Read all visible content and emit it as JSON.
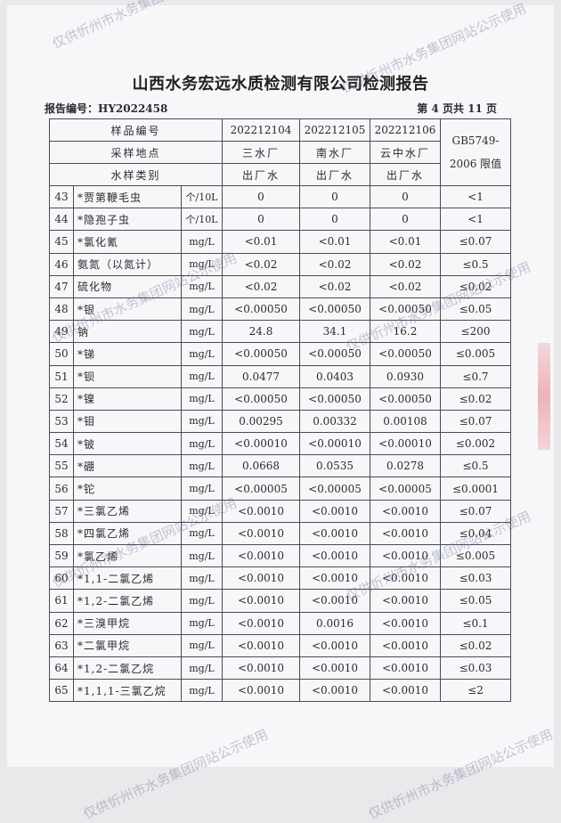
{
  "title": "山西水务宏远水质检测有限公司检测报告",
  "report_no": "报告编号：HY2022458",
  "page_no": "第 4 页共 11 页",
  "watermark": "仅供忻州市水务集团网站公示使用",
  "header": {
    "sample_no_label": "样品编号",
    "site_label": "采样地点",
    "type_label": "水样类别",
    "limit_label": "GB5749-2006 限值",
    "samples": [
      {
        "no": "202212104",
        "site": "三水厂",
        "type": "出厂水"
      },
      {
        "no": "202212105",
        "site": "南水厂",
        "type": "出厂水"
      },
      {
        "no": "202212106",
        "site": "云中水厂",
        "type": "出厂水"
      }
    ]
  },
  "rows": [
    [
      "43",
      "*贾第鞭毛虫",
      "个/10L",
      "0",
      "0",
      "0",
      "<1"
    ],
    [
      "44",
      "*隐孢子虫",
      "个/10L",
      "0",
      "0",
      "0",
      "<1"
    ],
    [
      "45",
      "*氯化氰",
      "mg/L",
      "<0.01",
      "<0.01",
      "<0.01",
      "≤0.07"
    ],
    [
      "46",
      "氨氮（以氮计）",
      "mg/L",
      "<0.02",
      "<0.02",
      "<0.02",
      "≤0.5"
    ],
    [
      "47",
      "硫化物",
      "mg/L",
      "<0.02",
      "<0.02",
      "<0.02",
      "≤0.02"
    ],
    [
      "48",
      "*银",
      "mg/L",
      "<0.00050",
      "<0.00050",
      "<0.00050",
      "≤0.05"
    ],
    [
      "49",
      "钠",
      "mg/L",
      "24.8",
      "34.1",
      "16.2",
      "≤200"
    ],
    [
      "50",
      "*锑",
      "mg/L",
      "<0.00050",
      "<0.00050",
      "<0.00050",
      "≤0.005"
    ],
    [
      "51",
      "*钡",
      "mg/L",
      "0.0477",
      "0.0403",
      "0.0930",
      "≤0.7"
    ],
    [
      "52",
      "*镍",
      "mg/L",
      "<0.00050",
      "<0.00050",
      "<0.00050",
      "≤0.02"
    ],
    [
      "53",
      "*钼",
      "mg/L",
      "0.00295",
      "0.00332",
      "0.00108",
      "≤0.07"
    ],
    [
      "54",
      "*铍",
      "mg/L",
      "<0.00010",
      "<0.00010",
      "<0.00010",
      "≤0.002"
    ],
    [
      "55",
      "*硼",
      "mg/L",
      "0.0668",
      "0.0535",
      "0.0278",
      "≤0.5"
    ],
    [
      "56",
      "*铊",
      "mg/L",
      "<0.00005",
      "<0.00005",
      "<0.00005",
      "≤0.0001"
    ],
    [
      "57",
      "*三氯乙烯",
      "mg/L",
      "<0.0010",
      "<0.0010",
      "<0.0010",
      "≤0.07"
    ],
    [
      "58",
      "*四氯乙烯",
      "mg/L",
      "<0.0010",
      "<0.0010",
      "<0.0010",
      "≤0.04"
    ],
    [
      "59",
      "*氯乙烯",
      "mg/L",
      "<0.0010",
      "<0.0010",
      "<0.0010",
      "≤0.005"
    ],
    [
      "60",
      "*1,1-二氯乙烯",
      "mg/L",
      "<0.0010",
      "<0.0010",
      "<0.0010",
      "≤0.03"
    ],
    [
      "61",
      "*1,2-二氯乙烯",
      "mg/L",
      "<0.0010",
      "<0.0010",
      "<0.0010",
      "≤0.05"
    ],
    [
      "62",
      "*三溴甲烷",
      "mg/L",
      "<0.0010",
      "0.0016",
      "<0.0010",
      "≤0.1"
    ],
    [
      "63",
      "*二氯甲烷",
      "mg/L",
      "<0.0010",
      "<0.0010",
      "<0.0010",
      "≤0.02"
    ],
    [
      "64",
      "*1,2-二氯乙烷",
      "mg/L",
      "<0.0010",
      "<0.0010",
      "<0.0010",
      "≤0.03"
    ],
    [
      "65",
      "*1,1,1-三氯乙烷",
      "mg/L",
      "<0.0010",
      "<0.0010",
      "<0.0010",
      "≤2"
    ]
  ]
}
